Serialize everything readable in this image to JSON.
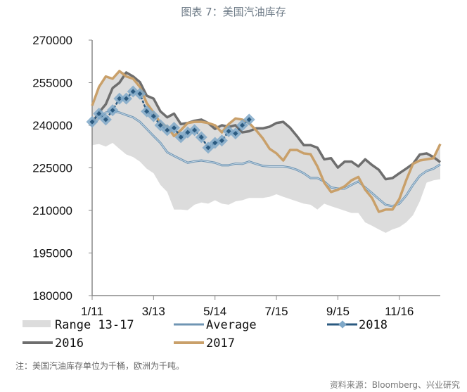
{
  "title": "图表 7：美国汽油库存",
  "note": "注：美国汽油库存单位为千桶，欧洲为千吨。",
  "source": "资料来源：Bloomberg、兴业研究",
  "chart_data": {
    "type": "line",
    "ylim": [
      180000,
      270000
    ],
    "yticks": [
      "270000",
      "255000",
      "240000",
      "225000",
      "210000",
      "195000",
      "180000"
    ],
    "yvalues": [
      270000,
      255000,
      240000,
      225000,
      210000,
      195000,
      180000
    ],
    "xticks": [
      {
        "label": "1/11",
        "week": 0
      },
      {
        "label": "3/13",
        "week": 9
      },
      {
        "label": "5/14",
        "week": 18
      },
      {
        "label": "7/15",
        "week": 27
      },
      {
        "label": "9/15",
        "week": 36
      },
      {
        "label": "11/16",
        "week": 45
      }
    ],
    "grid": false,
    "legend_placement": "bottom",
    "range": {
      "name": "Range 13-17",
      "color": "#dcdcdc",
      "upper": [
        246900,
        253500,
        257200,
        256400,
        259100,
        258600,
        257200,
        255200,
        250400,
        249400,
        244900,
        242800,
        244100,
        240400,
        240800,
        241600,
        242000,
        240800,
        240000,
        240000,
        240400,
        242400,
        242000,
        240800,
        238900,
        238900,
        239500,
        240800,
        241200,
        239100,
        236200,
        233000,
        233000,
        232100,
        228000,
        228400,
        225100,
        227200,
        227200,
        225500,
        228000,
        226000,
        224300,
        221000,
        221400,
        223100,
        224700,
        226400,
        229700,
        230100,
        228800,
        233400
      ],
      "lower": [
        233000,
        233400,
        232500,
        233800,
        231700,
        229700,
        228800,
        227200,
        224700,
        223100,
        219000,
        216500,
        210300,
        210300,
        210100,
        212000,
        212800,
        212400,
        213600,
        212400,
        212000,
        213200,
        213600,
        214400,
        214400,
        214400,
        214800,
        215700,
        214800,
        214000,
        213200,
        212400,
        212000,
        210300,
        212400,
        211500,
        210700,
        209900,
        209100,
        209100,
        205800,
        204600,
        203300,
        202100,
        203300,
        204100,
        205800,
        208300,
        213200,
        219800,
        220600,
        221000
      ]
    },
    "series": [
      {
        "name": "Average",
        "color": "#8fb0c8",
        "values": [
          240000,
          242400,
          244500,
          244900,
          244500,
          243600,
          242800,
          241200,
          238700,
          236200,
          233800,
          230500,
          229200,
          228000,
          226800,
          227300,
          227600,
          227200,
          226800,
          225900,
          225900,
          226500,
          226400,
          227200,
          226400,
          225700,
          225500,
          225500,
          225500,
          225100,
          224300,
          223100,
          221400,
          221400,
          220200,
          218100,
          217700,
          217700,
          219000,
          220200,
          218100,
          216100,
          214000,
          212000,
          211500,
          212400,
          215200,
          219000,
          222200,
          223900,
          224700,
          226200
        ]
      },
      {
        "name": "2016",
        "color": "#6e6e6e",
        "values": [
          240800,
          244500,
          247400,
          253100,
          255000,
          258600,
          257200,
          255200,
          250400,
          249400,
          244900,
          242800,
          244100,
          240400,
          240800,
          241600,
          242000,
          240800,
          238700,
          240000,
          239400,
          240000,
          237500,
          237900,
          238900,
          238900,
          239500,
          240800,
          241200,
          239100,
          236200,
          233000,
          233000,
          232100,
          228000,
          228400,
          225100,
          227200,
          227200,
          225500,
          228000,
          226000,
          224300,
          221000,
          221400,
          223100,
          224700,
          226400,
          229700,
          230100,
          228800,
          227000
        ]
      },
      {
        "name": "2017",
        "color": "#c9a06a",
        "values": [
          246900,
          253500,
          257200,
          256400,
          259100,
          257200,
          256400,
          253500,
          247800,
          244500,
          240800,
          239500,
          236200,
          238300,
          240800,
          241200,
          241200,
          240800,
          240000,
          237500,
          240400,
          242400,
          242000,
          240800,
          238300,
          235400,
          231700,
          230100,
          227600,
          231300,
          231300,
          230100,
          229800,
          225500,
          219800,
          216500,
          217300,
          218500,
          220600,
          221800,
          217300,
          214400,
          209500,
          210300,
          210300,
          214000,
          220600,
          226400,
          227600,
          228000,
          228400,
          233400
        ]
      },
      {
        "name": "2018",
        "color": "#2b5a80",
        "marker": "diamond",
        "marker_color": "#7fa8c8",
        "values": [
          241200,
          244100,
          242000,
          245300,
          249400,
          249400,
          251900,
          251100,
          244900,
          243200,
          240000,
          238300,
          239100,
          235800,
          237500,
          238300,
          235800,
          232100,
          233800,
          234600,
          237900,
          237100,
          240000,
          242000
        ]
      }
    ]
  }
}
